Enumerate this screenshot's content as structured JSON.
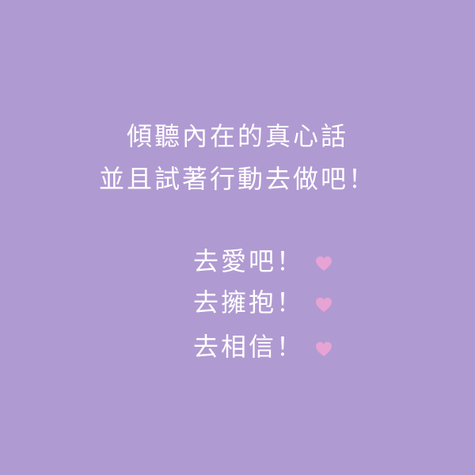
{
  "background_color": "#b09ad2",
  "text_color": "#ffffff",
  "heart_color": "#e6a3d3",
  "intro": {
    "line1": "傾聽內在的真心話",
    "line2": "並且試著行動去做吧！"
  },
  "actions": [
    {
      "text": "去愛吧！",
      "icon": "heart-icon"
    },
    {
      "text": "去擁抱！",
      "icon": "heart-icon"
    },
    {
      "text": "去相信！",
      "icon": "heart-icon"
    }
  ]
}
